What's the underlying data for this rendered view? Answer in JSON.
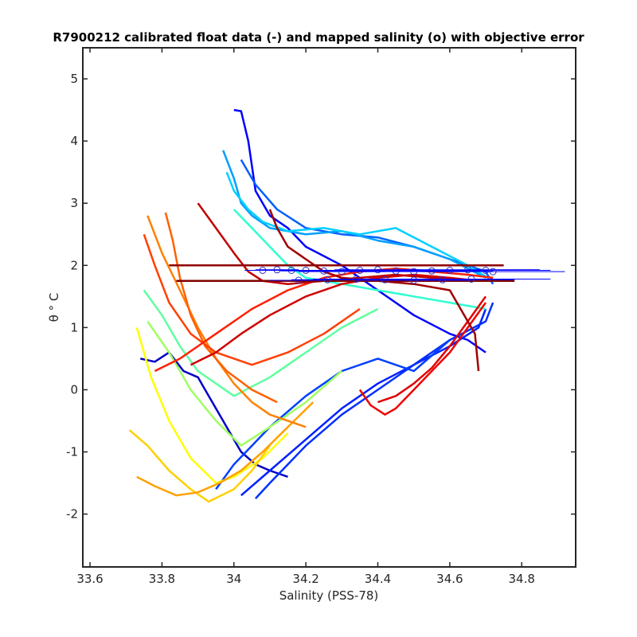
{
  "chart_data": {
    "type": "line",
    "title": "R7900212 calibrated float data (-) and mapped salinity (o) with objective error",
    "xlabel": "Salinity (PSS-78)",
    "ylabel": "θ ° C",
    "xlim": [
      33.58,
      34.95
    ],
    "ylim": [
      -2.85,
      5.5
    ],
    "x_ticks": [
      33.6,
      33.8,
      34,
      34.2,
      34.4,
      34.6,
      34.8
    ],
    "x_tick_labels": [
      "33.6",
      "33.8",
      "34",
      "34.2",
      "34.4",
      "34.6",
      "34.8"
    ],
    "y_ticks": [
      -2,
      -1,
      0,
      1,
      2,
      3,
      4,
      5
    ],
    "y_tick_labels": [
      "-2",
      "-1",
      "0",
      "1",
      "2",
      "3",
      "4",
      "5"
    ],
    "grid": false,
    "legend": "none",
    "colormap": "jet",
    "series": [
      {
        "color": "#0000c8",
        "x": [
          33.74,
          33.78,
          33.82,
          33.86,
          33.9,
          33.93,
          33.96,
          33.99,
          34.02,
          34.06,
          34.1,
          34.15
        ],
        "y": [
          0.5,
          0.45,
          0.6,
          0.3,
          0.2,
          -0.1,
          -0.4,
          -0.7,
          -1.0,
          -1.2,
          -1.3,
          -1.4
        ]
      },
      {
        "color": "#0000ff",
        "x": [
          34.0,
          34.02,
          34.04,
          34.05,
          34.06,
          34.08,
          34.1,
          34.15,
          34.2,
          34.3,
          34.4,
          34.5,
          34.6,
          34.65,
          34.7
        ],
        "y": [
          4.5,
          4.48,
          4.0,
          3.6,
          3.2,
          3.0,
          2.8,
          2.6,
          2.3,
          2.0,
          1.6,
          1.2,
          0.9,
          0.8,
          0.6
        ]
      },
      {
        "color": "#0020ff",
        "x": [
          34.02,
          34.1,
          34.2,
          34.3,
          34.4,
          34.5,
          34.6,
          34.68,
          34.7
        ],
        "y": [
          -1.7,
          -1.3,
          -0.8,
          -0.3,
          0.1,
          0.4,
          0.7,
          1.0,
          1.3
        ]
      },
      {
        "color": "#0030ff",
        "x": [
          34.06,
          34.1,
          34.15,
          34.2,
          34.3,
          34.4,
          34.5,
          34.6,
          34.7,
          34.72
        ],
        "y": [
          -1.75,
          -1.5,
          -1.2,
          -0.9,
          -0.4,
          0.0,
          0.4,
          0.8,
          1.1,
          1.4
        ]
      },
      {
        "color": "#0040ff",
        "x": [
          33.95,
          34.0,
          34.05,
          34.1,
          34.2,
          34.3,
          34.4,
          34.5,
          34.6
        ],
        "y": [
          -1.6,
          -1.2,
          -0.9,
          -0.6,
          -0.1,
          0.3,
          0.5,
          0.3,
          0.8
        ]
      },
      {
        "color": "#0060ff",
        "x": [
          34.02,
          34.06,
          34.12,
          34.2,
          34.3,
          34.4,
          34.5,
          34.6,
          34.7,
          34.72
        ],
        "y": [
          3.7,
          3.3,
          2.9,
          2.6,
          2.5,
          2.45,
          2.3,
          2.1,
          1.9,
          1.7
        ]
      },
      {
        "color": "#00a0ff",
        "x": [
          33.97,
          34.0,
          34.02,
          34.05,
          34.1,
          34.2,
          34.3,
          34.4,
          34.5,
          34.6,
          34.7
        ],
        "y": [
          3.85,
          3.4,
          3.0,
          2.8,
          2.6,
          2.5,
          2.55,
          2.4,
          2.3,
          2.1,
          1.8
        ]
      },
      {
        "color": "#00d0ff",
        "x": [
          33.98,
          34.0,
          34.04,
          34.08,
          34.15,
          34.25,
          34.35,
          34.45,
          34.55,
          34.65,
          34.72
        ],
        "y": [
          3.5,
          3.2,
          2.9,
          2.7,
          2.55,
          2.6,
          2.5,
          2.6,
          2.3,
          2.0,
          1.75
        ]
      },
      {
        "color": "#30ffd0",
        "x": [
          34.0,
          34.05,
          34.1,
          34.15,
          34.2,
          34.3,
          34.4,
          34.5,
          34.6,
          34.7
        ],
        "y": [
          2.9,
          2.6,
          2.3,
          2.0,
          1.8,
          1.7,
          1.6,
          1.5,
          1.4,
          1.3
        ]
      },
      {
        "color": "#60ffa0",
        "x": [
          33.75,
          33.8,
          33.85,
          33.9,
          34.0,
          34.1,
          34.2,
          34.3,
          34.4
        ],
        "y": [
          1.6,
          1.2,
          0.7,
          0.3,
          -0.1,
          0.2,
          0.6,
          1.0,
          1.3
        ]
      },
      {
        "color": "#a0ff60",
        "x": [
          33.76,
          33.82,
          33.88,
          33.95,
          34.02,
          34.1,
          34.2,
          34.3
        ],
        "y": [
          1.1,
          0.6,
          0.0,
          -0.5,
          -0.9,
          -0.6,
          -0.2,
          0.3
        ]
      },
      {
        "color": "#ffff00",
        "x": [
          33.73,
          33.77,
          33.82,
          33.88,
          33.95,
          34.0,
          34.08,
          34.15
        ],
        "y": [
          1.0,
          0.2,
          -0.5,
          -1.1,
          -1.5,
          -1.4,
          -1.1,
          -0.7
        ]
      },
      {
        "color": "#ffd000",
        "x": [
          33.71,
          33.76,
          33.82,
          33.88,
          33.93,
          34.0,
          34.05,
          34.1
        ],
        "y": [
          -0.65,
          -0.9,
          -1.3,
          -1.6,
          -1.8,
          -1.6,
          -1.3,
          -0.9
        ]
      },
      {
        "color": "#ffa000",
        "x": [
          33.73,
          33.78,
          33.84,
          33.9,
          33.96,
          34.02,
          34.08,
          34.15,
          34.22
        ],
        "y": [
          -1.4,
          -1.55,
          -1.7,
          -1.65,
          -1.5,
          -1.3,
          -1.0,
          -0.6,
          -0.2
        ]
      },
      {
        "color": "#ff8000",
        "x": [
          33.76,
          33.8,
          33.85,
          33.9,
          33.95,
          34.0,
          34.05,
          34.1,
          34.2
        ],
        "y": [
          2.8,
          2.2,
          1.6,
          1.0,
          0.5,
          0.1,
          -0.2,
          -0.4,
          -0.6
        ]
      },
      {
        "color": "#ff6000",
        "x": [
          33.81,
          33.83,
          33.85,
          33.88,
          33.92,
          33.98,
          34.05,
          34.12
        ],
        "y": [
          2.85,
          2.4,
          1.8,
          1.2,
          0.7,
          0.3,
          0.0,
          -0.2
        ]
      },
      {
        "color": "#ff4000",
        "x": [
          33.75,
          33.78,
          33.82,
          33.88,
          33.95,
          34.05,
          34.15,
          34.25,
          34.35
        ],
        "y": [
          2.5,
          2.0,
          1.4,
          0.9,
          0.6,
          0.4,
          0.6,
          0.9,
          1.3
        ]
      },
      {
        "color": "#ff2000",
        "x": [
          33.78,
          33.85,
          33.95,
          34.05,
          34.15,
          34.25,
          34.35,
          34.45,
          34.55,
          34.65,
          34.72
        ],
        "y": [
          0.3,
          0.5,
          0.9,
          1.3,
          1.6,
          1.8,
          1.9,
          1.95,
          1.9,
          1.85,
          1.8
        ]
      },
      {
        "color": "#f00000",
        "x": [
          34.35,
          34.38,
          34.42,
          34.45,
          34.5,
          34.55,
          34.6,
          34.65,
          34.7
        ],
        "y": [
          0.0,
          -0.25,
          -0.4,
          -0.3,
          0.0,
          0.3,
          0.6,
          1.0,
          1.4
        ]
      },
      {
        "color": "#e00000",
        "x": [
          34.4,
          34.45,
          34.5,
          34.55,
          34.6,
          34.65,
          34.7
        ],
        "y": [
          -0.2,
          -0.1,
          0.1,
          0.35,
          0.7,
          1.1,
          1.5
        ]
      },
      {
        "color": "#d00000",
        "x": [
          33.88,
          33.95,
          34.02,
          34.1,
          34.2,
          34.3,
          34.4,
          34.5,
          34.6,
          34.68
        ],
        "y": [
          0.4,
          0.6,
          0.9,
          1.2,
          1.5,
          1.7,
          1.8,
          1.85,
          1.8,
          1.75
        ]
      },
      {
        "color": "#c00000",
        "x": [
          33.9,
          33.95,
          34.0,
          34.04,
          34.08,
          34.15,
          34.25,
          34.35,
          34.45,
          34.55,
          34.65
        ],
        "y": [
          3.0,
          2.6,
          2.2,
          1.9,
          1.75,
          1.7,
          1.75,
          1.8,
          1.85,
          1.8,
          1.75
        ]
      },
      {
        "color": "#a00000",
        "x": [
          34.1,
          34.12,
          34.15,
          34.2,
          34.25,
          34.3,
          34.4,
          34.5,
          34.6,
          34.67,
          34.68
        ],
        "y": [
          2.9,
          2.6,
          2.3,
          2.1,
          1.9,
          1.8,
          1.75,
          1.7,
          1.6,
          0.9,
          0.3
        ]
      },
      {
        "color": "#900000",
        "x": [
          33.82,
          34.0,
          34.2,
          34.4,
          34.6,
          34.75
        ],
        "y": [
          2.0,
          2.0,
          2.0,
          2.0,
          2.0,
          2.0
        ]
      },
      {
        "color": "#800000",
        "x": [
          33.84,
          34.0,
          34.2,
          34.4,
          34.6,
          34.78
        ],
        "y": [
          1.75,
          1.75,
          1.75,
          1.75,
          1.75,
          1.75
        ]
      }
    ],
    "mapped_salinity": {
      "marker": "circle",
      "x": [
        34.08,
        34.12,
        34.16,
        34.2,
        34.25,
        34.3,
        34.35,
        34.4,
        34.45,
        34.5,
        34.55,
        34.6,
        34.65,
        34.7,
        34.72,
        34.18,
        34.26,
        34.34,
        34.42,
        34.5,
        34.58,
        34.66
      ],
      "y": [
        1.92,
        1.93,
        1.92,
        1.92,
        1.91,
        1.9,
        1.92,
        1.93,
        1.91,
        1.9,
        1.91,
        1.92,
        1.93,
        1.92,
        1.9,
        1.76,
        1.77,
        1.78,
        1.77,
        1.76,
        1.77,
        1.78
      ],
      "err": [
        0.05,
        0.06,
        0.08,
        0.1,
        0.12,
        0.12,
        0.13,
        0.12,
        0.14,
        0.15,
        0.17,
        0.18,
        0.2,
        0.18,
        0.2,
        0.08,
        0.1,
        0.12,
        0.14,
        0.16,
        0.2,
        0.22
      ]
    }
  }
}
